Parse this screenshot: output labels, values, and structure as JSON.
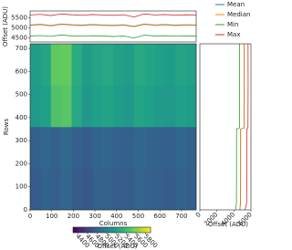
{
  "chart_data": [
    {
      "type": "line",
      "ylabel": "Offset (ADU)",
      "xlim": [
        0,
        768
      ],
      "ylim": [
        4300,
        5850
      ],
      "yticks": [
        4500,
        5000,
        5500
      ],
      "legend": "outside-right",
      "x": [
        0,
        48,
        96,
        144,
        192,
        240,
        288,
        336,
        384,
        432,
        480,
        528,
        576,
        624,
        672,
        720,
        768
      ],
      "series": [
        {
          "name": "Mean",
          "color": "#1f77b4",
          "values": [
            5150,
            5180,
            5120,
            5200,
            5160,
            5140,
            5170,
            5150,
            5130,
            5160,
            5080,
            5200,
            5150,
            5170,
            5140,
            5160,
            5150
          ]
        },
        {
          "name": "Median",
          "color": "#ff7f0e",
          "values": [
            5130,
            5160,
            5100,
            5180,
            5140,
            5120,
            5150,
            5130,
            5110,
            5140,
            5060,
            5180,
            5130,
            5150,
            5120,
            5140,
            5130
          ]
        },
        {
          "name": "Min",
          "color": "#2ca02c",
          "values": [
            4600,
            4620,
            4580,
            4650,
            4600,
            4590,
            4610,
            4600,
            4570,
            4600,
            4500,
            4640,
            4600,
            4610,
            4590,
            4600,
            4600
          ]
        },
        {
          "name": "Max",
          "color": "#d62728",
          "values": [
            5650,
            5680,
            5620,
            5700,
            5660,
            5640,
            5670,
            5650,
            5630,
            5660,
            5550,
            5700,
            5650,
            5670,
            5640,
            5660,
            5650
          ]
        }
      ]
    },
    {
      "type": "heatmap",
      "xlabel": "Columns",
      "ylabel": "Rows",
      "xlim": [
        0,
        768
      ],
      "ylim": [
        0,
        720
      ],
      "xticks": [
        0,
        100,
        200,
        300,
        400,
        500,
        600,
        700
      ],
      "yticks": [
        0,
        100,
        200,
        300,
        400,
        500,
        600,
        700
      ],
      "xbins": [
        0,
        48,
        96,
        144,
        192,
        240,
        288,
        336,
        384,
        432,
        480,
        528,
        576,
        624,
        672,
        720,
        768
      ],
      "ybins": [
        0,
        180,
        360,
        540,
        720
      ],
      "values": [
        [
          4750,
          4800,
          4780,
          4820,
          4760,
          4740,
          4790,
          4800,
          4770,
          4760,
          4810,
          4790,
          4780,
          4760,
          4800,
          4780
        ],
        [
          4780,
          4820,
          4800,
          4840,
          4780,
          4760,
          4810,
          4820,
          4790,
          4780,
          4830,
          4810,
          4800,
          4780,
          4820,
          4800
        ],
        [
          5150,
          5200,
          5450,
          5480,
          5250,
          5150,
          5200,
          5220,
          5180,
          5150,
          5230,
          5200,
          5170,
          5150,
          5200,
          5180
        ],
        [
          5180,
          5230,
          5500,
          5520,
          5280,
          5180,
          5230,
          5250,
          5210,
          5180,
          5260,
          5230,
          5200,
          5180,
          5230,
          5210
        ]
      ],
      "colormap": "viridis",
      "colorbar": {
        "label": "Offset (ADU)",
        "lim": [
          4300,
          5900
        ],
        "ticks": [
          4400,
          4600,
          4800,
          5000,
          5200,
          5400,
          5600,
          5800
        ]
      }
    },
    {
      "type": "line",
      "orientation": "horizontal",
      "xlabel": "Offset (ADU)",
      "xlim": [
        0,
        6000
      ],
      "xticks": [
        0,
        2000,
        4000,
        6000
      ],
      "ylim": [
        0,
        720
      ],
      "y": [
        0,
        30,
        175,
        350,
        355,
        540,
        720
      ],
      "series": [
        {
          "color": "#1f77b4",
          "values": [
            4700,
            4780,
            4790,
            4790,
            5200,
            5220,
            5210
          ]
        },
        {
          "color": "#ff7f0e",
          "values": [
            4680,
            4760,
            4770,
            4770,
            5180,
            5200,
            5190
          ]
        },
        {
          "color": "#2ca02c",
          "values": [
            4200,
            4300,
            4310,
            4310,
            4650,
            4660,
            4650
          ]
        },
        {
          "color": "#d62728",
          "values": [
            5300,
            5500,
            5510,
            5510,
            5650,
            5670,
            5660
          ]
        }
      ]
    }
  ]
}
